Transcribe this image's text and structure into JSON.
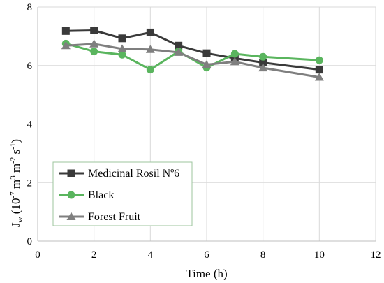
{
  "chart_data": {
    "type": "line",
    "xlabel": "Time (h)",
    "ylabel": {
      "base": "J",
      "sub": "w",
      "units_open": " (10",
      "exp1": "-7",
      "units_mid1": " m",
      "exp2": "3",
      "units_mid2": " m",
      "exp3": "-2",
      "units_mid3": " s",
      "exp4": "-1",
      "units_close": ")"
    },
    "xlim": [
      0,
      12
    ],
    "ylim": [
      0,
      8
    ],
    "xticks": [
      "0",
      "2",
      "4",
      "6",
      "8",
      "10",
      "12"
    ],
    "yticks": [
      "0",
      "2",
      "4",
      "6",
      "8"
    ],
    "grid": true,
    "legend_position": "bottom-left",
    "series": [
      {
        "name": "Medicinal Rosil Nº6",
        "color": "#3a3a3a",
        "marker": "square",
        "points": [
          [
            1,
            7.18
          ],
          [
            2,
            7.2
          ],
          [
            3,
            6.93
          ],
          [
            4,
            7.13
          ],
          [
            5,
            6.68
          ],
          [
            6,
            6.42
          ],
          [
            7,
            6.25
          ],
          [
            8,
            6.1
          ],
          [
            10,
            5.86
          ]
        ]
      },
      {
        "name": "Black",
        "color": "#5ab55e",
        "marker": "circle",
        "points": [
          [
            1,
            6.75
          ],
          [
            2,
            6.48
          ],
          [
            3,
            6.37
          ],
          [
            4,
            5.86
          ],
          [
            5,
            6.48
          ],
          [
            6,
            5.93
          ],
          [
            7,
            6.4
          ],
          [
            8,
            6.3
          ],
          [
            10,
            6.18
          ]
        ]
      },
      {
        "name": "Forest Fruit",
        "color": "#7f7f7f",
        "marker": "triangle",
        "points": [
          [
            1,
            6.68
          ],
          [
            2,
            6.74
          ],
          [
            3,
            6.57
          ],
          [
            4,
            6.55
          ],
          [
            5,
            6.45
          ],
          [
            6,
            6.03
          ],
          [
            7,
            6.13
          ],
          [
            8,
            5.92
          ],
          [
            10,
            5.6
          ]
        ]
      }
    ]
  }
}
